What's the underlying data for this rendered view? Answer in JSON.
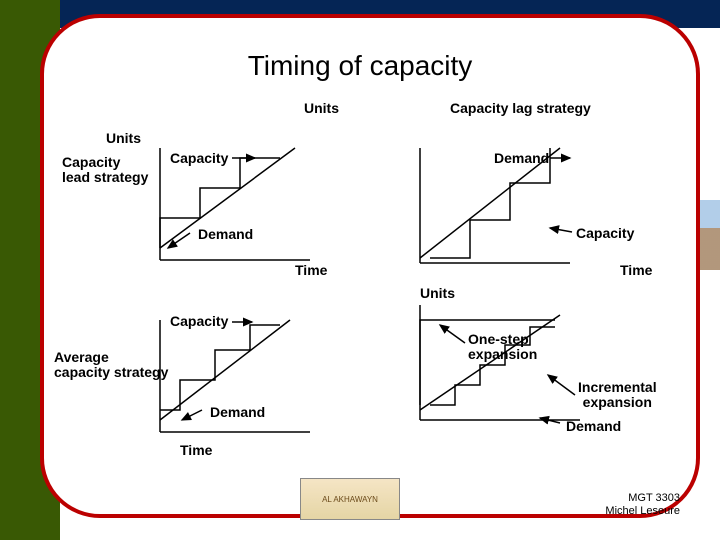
{
  "title": "Timing of capacity",
  "axes": {
    "y": "Units",
    "x": "Time"
  },
  "colors": {
    "sidebar": "#395904",
    "topbar": "#052555",
    "frame_border": "#bb0000",
    "line": "#000000",
    "bg": "#ffffff"
  },
  "charts": {
    "lead": {
      "title": "Capacity\nlead strategy",
      "top_right": "Capacity lag strategy",
      "cap_label": "Capacity",
      "dem_label": "Demand",
      "steps": [
        [
          0,
          100
        ],
        [
          0,
          70
        ],
        [
          40,
          70
        ],
        [
          40,
          40
        ],
        [
          80,
          40
        ],
        [
          80,
          10
        ],
        [
          120,
          10
        ]
      ],
      "demand": [
        [
          0,
          100
        ],
        [
          135,
          0
        ]
      ]
    },
    "lag": {
      "cap_label": "Capacity",
      "dem_label": "Demand",
      "steps": [
        [
          10,
          110
        ],
        [
          50,
          110
        ],
        [
          50,
          72
        ],
        [
          90,
          72
        ],
        [
          90,
          35
        ],
        [
          130,
          35
        ],
        [
          130,
          0
        ]
      ],
      "demand": [
        [
          0,
          110
        ],
        [
          140,
          0
        ]
      ]
    },
    "avg": {
      "title": "Average\ncapacity strategy",
      "cap_label": "Capacity",
      "dem_label": "Demand",
      "steps": [
        [
          0,
          90
        ],
        [
          20,
          90
        ],
        [
          20,
          60
        ],
        [
          55,
          60
        ],
        [
          55,
          30
        ],
        [
          90,
          30
        ],
        [
          90,
          5
        ],
        [
          120,
          5
        ]
      ],
      "demand": [
        [
          0,
          100
        ],
        [
          130,
          0
        ]
      ]
    },
    "exp": {
      "onestep": "One-step\nexpansion",
      "incr": "Incremental\nexpansion",
      "dem_label": "Demand",
      "bigstep": [
        [
          0,
          100
        ],
        [
          0,
          15
        ],
        [
          135,
          15
        ]
      ],
      "smallsteps": [
        [
          10,
          100
        ],
        [
          35,
          100
        ],
        [
          35,
          80
        ],
        [
          60,
          80
        ],
        [
          60,
          60
        ],
        [
          85,
          60
        ],
        [
          85,
          40
        ],
        [
          110,
          40
        ],
        [
          110,
          22
        ],
        [
          135,
          22
        ]
      ],
      "demand": [
        [
          0,
          105
        ],
        [
          140,
          10
        ]
      ]
    }
  },
  "footer": {
    "course": "MGT 3303",
    "author": "Michel Leseure"
  }
}
